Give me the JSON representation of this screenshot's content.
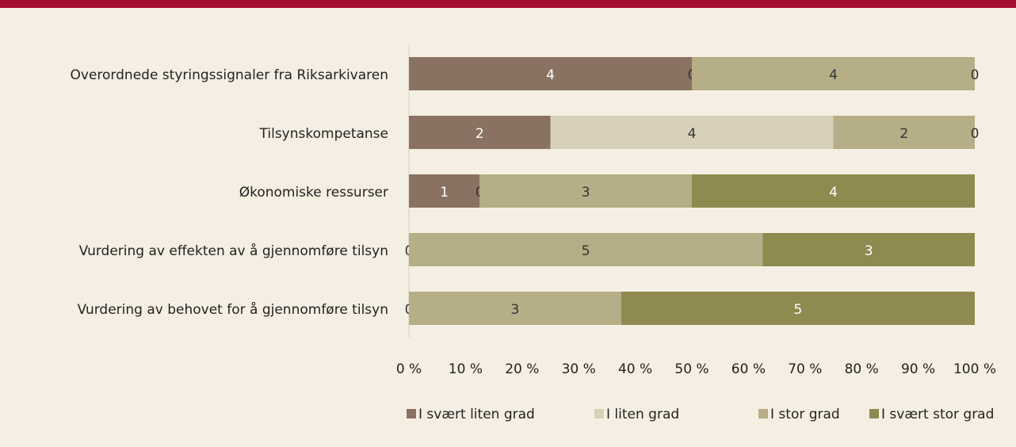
{
  "chart_data": {
    "type": "bar",
    "orientation": "horizontal",
    "stacking": "percent",
    "categories": [
      "Overordnede styringssignaler fra Riksarkivaren",
      "Tilsynskompetanse",
      "Økonomiske ressurser",
      "Vurdering av effekten av å gjennomføre tilsyn",
      "Vurdering av behovet for å gjennomføre tilsyn"
    ],
    "series": [
      {
        "name": "I svært liten grad",
        "color": "#8a7262",
        "label_color": "#ffffff",
        "values": [
          4,
          2,
          1,
          0,
          0
        ]
      },
      {
        "name": "I liten grad",
        "color": "#d9d0bb",
        "label_color": "#333333",
        "values": [
          0,
          4,
          0,
          null,
          null
        ]
      },
      {
        "name": "I stor grad",
        "color": "#b5ae86",
        "label_color": "#333333",
        "values": [
          4,
          2,
          3,
          5,
          3
        ]
      },
      {
        "name": "I svært stor grad",
        "color": "#8f8a4f",
        "label_color": "#ffffff",
        "values": [
          0,
          0,
          4,
          3,
          5
        ]
      }
    ],
    "xlim": [
      0,
      100
    ],
    "xticks": [
      {
        "value": 0,
        "label": "0 %"
      },
      {
        "value": 10,
        "label": "10 %"
      },
      {
        "value": 20,
        "label": "20 %"
      },
      {
        "value": 30,
        "label": "30 %"
      },
      {
        "value": 40,
        "label": "40 %"
      },
      {
        "value": 50,
        "label": "50 %"
      },
      {
        "value": 60,
        "label": "60 %"
      },
      {
        "value": 70,
        "label": "70 %"
      },
      {
        "value": 80,
        "label": "80 %"
      },
      {
        "value": 90,
        "label": "90 %"
      },
      {
        "value": 100,
        "label": "100 %"
      }
    ],
    "grid": false,
    "legend": "bottom"
  }
}
